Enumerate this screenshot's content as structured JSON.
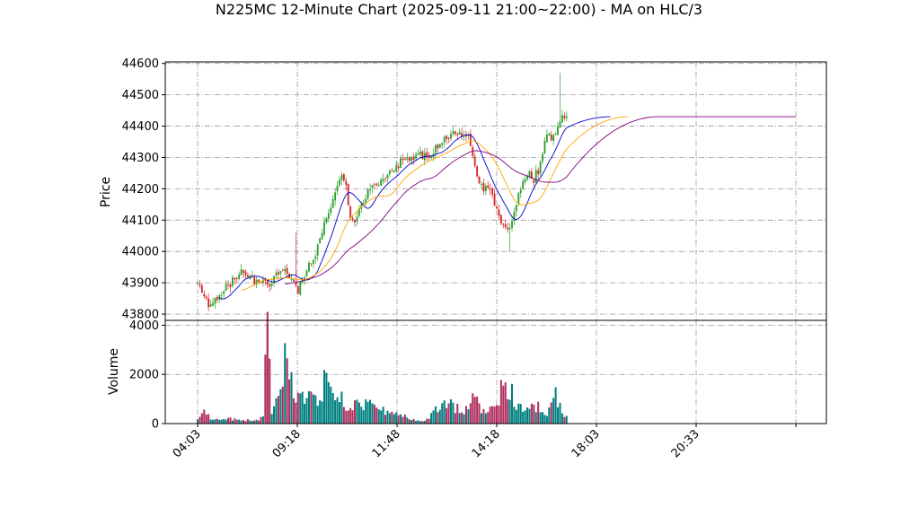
{
  "chart_data": {
    "type": "candlestick",
    "title": "N225MC 12-Minute Chart (2025-09-11 21:00~22:00) - MA on HLC/3",
    "price_panel": {
      "ylabel": "Price",
      "ylim": [
        43780,
        44605
      ],
      "yticks": [
        43800,
        43900,
        44000,
        44100,
        44200,
        44300,
        44400,
        44500,
        44600
      ],
      "grid": true
    },
    "volume_panel": {
      "ylabel": "Volume",
      "ylim": [
        0,
        4200
      ],
      "yticks": [
        0,
        2000,
        4000
      ],
      "grid": true
    },
    "x_axis": {
      "tick_labels": [
        "04:03",
        "09:18",
        "11:48",
        "14:18",
        "18:03",
        "20:33",
        ""
      ],
      "label_rotation": 45
    },
    "colors": {
      "up": "#2ca02c",
      "down": "#d62728",
      "ma_short": "#0000cc",
      "ma_mid": "#ffa500",
      "ma_long": "#800080",
      "vol_up": "#008080",
      "vol_down": "#b03060",
      "grid": "#999999"
    },
    "price_anchors": [
      [
        0,
        43895
      ],
      [
        4,
        43840
      ],
      [
        6,
        43820
      ],
      [
        9,
        43855
      ],
      [
        12,
        43880
      ],
      [
        16,
        43905
      ],
      [
        20,
        43930
      ],
      [
        24,
        43915
      ],
      [
        28,
        43900
      ],
      [
        32,
        43895
      ],
      [
        36,
        43920
      ],
      [
        40,
        43930
      ],
      [
        44,
        43910
      ],
      [
        46,
        43870
      ],
      [
        49,
        43930
      ],
      [
        52,
        43960
      ],
      [
        55,
        44010
      ],
      [
        57,
        44060
      ],
      [
        60,
        44130
      ],
      [
        63,
        44180
      ],
      [
        66,
        44240
      ],
      [
        68,
        44200
      ],
      [
        70,
        44120
      ],
      [
        72,
        44080
      ],
      [
        75,
        44150
      ],
      [
        78,
        44190
      ],
      [
        82,
        44220
      ],
      [
        86,
        44240
      ],
      [
        90,
        44270
      ],
      [
        94,
        44290
      ],
      [
        98,
        44300
      ],
      [
        102,
        44305
      ],
      [
        106,
        44310
      ],
      [
        110,
        44330
      ],
      [
        114,
        44365
      ],
      [
        118,
        44380
      ],
      [
        121,
        44370
      ],
      [
        124,
        44360
      ],
      [
        126,
        44300
      ],
      [
        128,
        44230
      ],
      [
        131,
        44200
      ],
      [
        134,
        44210
      ],
      [
        136,
        44150
      ],
      [
        138,
        44100
      ],
      [
        140,
        44080
      ],
      [
        142,
        44060
      ],
      [
        144,
        44100
      ],
      [
        146,
        44150
      ],
      [
        148,
        44200
      ],
      [
        150,
        44240
      ],
      [
        152,
        44260
      ],
      [
        154,
        44230
      ],
      [
        156,
        44260
      ],
      [
        158,
        44320
      ],
      [
        160,
        44360
      ],
      [
        163,
        44370
      ],
      [
        165,
        44400
      ],
      [
        167,
        44440
      ],
      [
        168,
        44420
      ],
      [
        169,
        44420
      ]
    ],
    "ma_short_tail": {
      "end": 44430,
      "to_bar": 189
    },
    "ma_mid_tail": {
      "end": 44430,
      "to_bar": 197
    },
    "ma_long_flat": {
      "value": 44430,
      "from_bar": 211,
      "to_bar": 274
    },
    "volume_anchors": [
      [
        0,
        150
      ],
      [
        3,
        500
      ],
      [
        6,
        250
      ],
      [
        10,
        180
      ],
      [
        16,
        200
      ],
      [
        20,
        160
      ],
      [
        24,
        140
      ],
      [
        28,
        130
      ],
      [
        30,
        300
      ],
      [
        32,
        4050
      ],
      [
        34,
        600
      ],
      [
        36,
        1200
      ],
      [
        38,
        2000
      ],
      [
        40,
        2800
      ],
      [
        42,
        2400
      ],
      [
        44,
        1500
      ],
      [
        46,
        1000
      ],
      [
        50,
        1200
      ],
      [
        56,
        900
      ],
      [
        58,
        1900
      ],
      [
        62,
        1100
      ],
      [
        66,
        1000
      ],
      [
        70,
        700
      ],
      [
        76,
        900
      ],
      [
        82,
        600
      ],
      [
        90,
        500
      ],
      [
        96,
        250
      ],
      [
        100,
        120
      ],
      [
        106,
        200
      ],
      [
        110,
        750
      ],
      [
        114,
        1000
      ],
      [
        118,
        700
      ],
      [
        122,
        500
      ],
      [
        126,
        1200
      ],
      [
        128,
        1300
      ],
      [
        130,
        400
      ],
      [
        134,
        900
      ],
      [
        136,
        1100
      ],
      [
        138,
        700
      ],
      [
        140,
        2200
      ],
      [
        142,
        1000
      ],
      [
        144,
        1350
      ],
      [
        146,
        700
      ],
      [
        150,
        600
      ],
      [
        154,
        800
      ],
      [
        158,
        700
      ],
      [
        160,
        450
      ],
      [
        162,
        1250
      ],
      [
        164,
        1300
      ],
      [
        166,
        900
      ],
      [
        168,
        300
      ],
      [
        169,
        300
      ]
    ]
  }
}
